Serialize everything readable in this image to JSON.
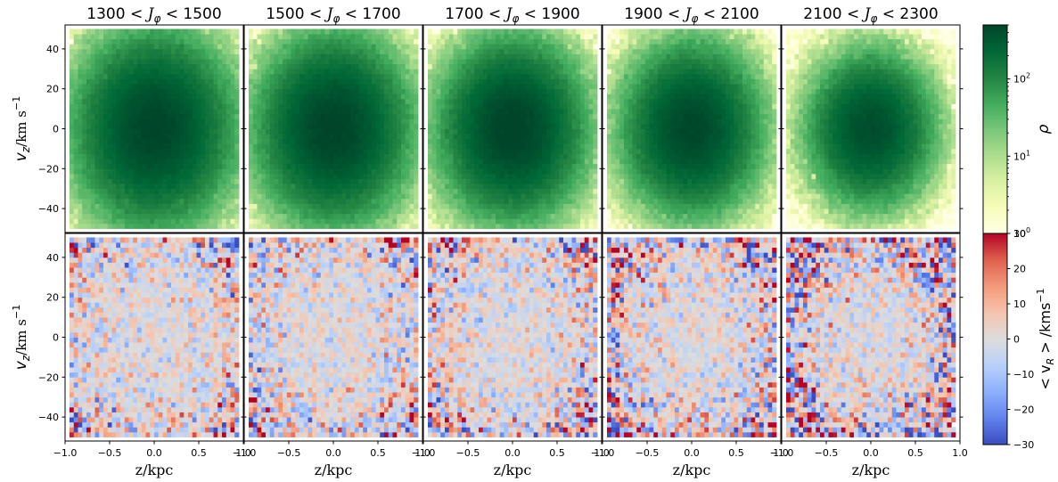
{
  "chart_data": {
    "type": "heatmap",
    "layout": "2 rows x 5 columns of 2D histograms sharing axes, with two colorbars",
    "panel_titles": [
      "1300 < J_φ < 1500",
      "1500 < J_φ < 1700",
      "1700 < J_φ < 1900",
      "1900 < J_φ < 2100",
      "2100 < J_φ < 2300"
    ],
    "panel_title_parts": [
      {
        "low": "1300",
        "high": "1500"
      },
      {
        "low": "1500",
        "high": "1700"
      },
      {
        "low": "1700",
        "high": "1900"
      },
      {
        "low": "1900",
        "high": "2100"
      },
      {
        "low": "2100",
        "high": "2300"
      }
    ],
    "title_symbol": "J",
    "title_subscript": "φ",
    "title_op": "<",
    "xlabel": "z/kpc",
    "ylabel_main": "v",
    "ylabel_sub": "z",
    "ylabel_unit": "/km s",
    "ylabel_exp": "−1",
    "xlim": [
      -1.0,
      1.0
    ],
    "ylim": [
      -52,
      52
    ],
    "xticks": [
      "−1.0",
      "−0.5",
      "0.0",
      "0.5",
      "1.0"
    ],
    "xtick_values": [
      -1.0,
      -0.5,
      0.0,
      0.5,
      1.0
    ],
    "yticks": [
      "40",
      "20",
      "0",
      "−20",
      "−40"
    ],
    "ytick_values": [
      40,
      20,
      0,
      -20,
      -40
    ],
    "bins": {
      "nx": 40,
      "ny": 40,
      "x_range": [
        -0.95,
        0.95
      ],
      "y_range": [
        -50,
        50
      ]
    },
    "rows": [
      {
        "name": "density",
        "colormap": "YlGn",
        "scale": "log",
        "peak_density": [
          500,
          520,
          540,
          480,
          420
        ],
        "sigma_z": [
          0.42,
          0.4,
          0.38,
          0.36,
          0.33
        ],
        "sigma_vz": [
          23,
          22,
          21,
          20,
          18
        ]
      },
      {
        "name": "mean_vR",
        "colormap": "coolwarm",
        "scale": "linear",
        "center_value": 0,
        "noise_amplitude_edge": 30
      }
    ],
    "colorbars": [
      {
        "label": "ρ",
        "scale": "log",
        "range": [
          1,
          500
        ],
        "ticks": [
          {
            "value": 1,
            "base": "10",
            "exp": "0"
          },
          {
            "value": 10,
            "base": "10",
            "exp": "1"
          },
          {
            "value": 100,
            "base": "10",
            "exp": "2"
          }
        ]
      },
      {
        "label_prefix": "< v",
        "label_sub": "R",
        "label_suffix": " > /kms",
        "label_exp": "−1",
        "scale": "linear",
        "range": [
          -30,
          30
        ],
        "ticks": [
          "30",
          "20",
          "10",
          "0",
          "−10",
          "−20",
          "−30"
        ],
        "tick_values": [
          30,
          20,
          10,
          0,
          -10,
          -20,
          -30
        ]
      }
    ],
    "colors": {
      "density_low": "#ffffe5",
      "density_high": "#004529",
      "vr_negative": "#3b4cc0",
      "vr_zero": "#dddcdc",
      "vr_positive": "#b40426"
    }
  }
}
